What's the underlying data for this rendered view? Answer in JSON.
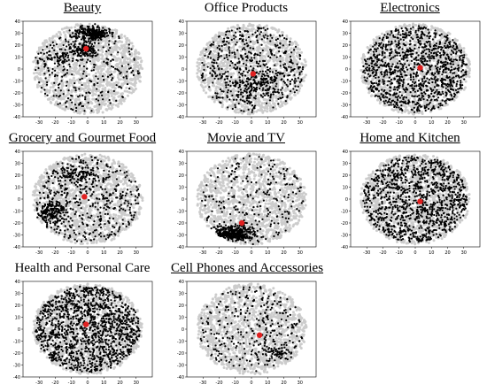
{
  "colors": {
    "background_points": "#cccccc",
    "category_points": "#000000",
    "centroid": "#e02020"
  },
  "chart_data": [
    {
      "type": "scatter",
      "title": "Beauty",
      "title_underlined": true,
      "xlim": [
        -40,
        40
      ],
      "ylim": [
        -40,
        40
      ],
      "xticks": [
        "-30",
        "-20",
        "-10",
        "0",
        "10",
        "20",
        "30"
      ],
      "yticks": [
        "40",
        "30",
        "20",
        "10",
        "0",
        "-10",
        "-20",
        "-30",
        "-40"
      ],
      "series": [
        {
          "role": "all_products",
          "color": "#cccccc",
          "shape": "ellipse",
          "center": [
            0,
            0
          ],
          "radius": [
            34,
            38
          ],
          "points": 1400
        },
        {
          "role": "category",
          "color": "#000000",
          "density": "cluster",
          "clusters": [
            {
              "center": [
                3,
                30
              ],
              "radius": [
                10,
                5
              ],
              "points": 260
            },
            {
              "center": [
                -2,
                16
              ],
              "radius": [
                8,
                6
              ],
              "points": 120
            },
            {
              "center": [
                -18,
                10
              ],
              "radius": [
                9,
                8
              ],
              "points": 70
            }
          ],
          "scattered": 260
        },
        {
          "role": "centroid",
          "color": "#e02020",
          "x": -1,
          "y": 17
        }
      ]
    },
    {
      "type": "scatter",
      "title": "Office Products",
      "title_underlined": false,
      "xlim": [
        -40,
        40
      ],
      "ylim": [
        -40,
        40
      ],
      "xticks": [
        "-30",
        "-20",
        "-10",
        "0",
        "10",
        "20",
        "30"
      ],
      "yticks": [
        "40",
        "30",
        "20",
        "10",
        "0",
        "-10",
        "-20",
        "-30",
        "-40"
      ],
      "series": [
        {
          "role": "all_products",
          "color": "#cccccc",
          "shape": "ellipse",
          "center": [
            0,
            0
          ],
          "radius": [
            34,
            38
          ],
          "points": 1400
        },
        {
          "role": "category",
          "color": "#000000",
          "density": "medium",
          "clusters": [
            {
              "center": [
                5,
                -12
              ],
              "radius": [
                14,
                10
              ],
              "points": 150
            }
          ],
          "scattered": 500
        },
        {
          "role": "centroid",
          "color": "#e02020",
          "x": 1,
          "y": -4
        }
      ]
    },
    {
      "type": "scatter",
      "title": "Electronics",
      "title_underlined": true,
      "xlim": [
        -40,
        40
      ],
      "ylim": [
        -40,
        40
      ],
      "xticks": [
        "-30",
        "-20",
        "-10",
        "0",
        "10",
        "20",
        "30"
      ],
      "yticks": [
        "40",
        "30",
        "20",
        "10",
        "0",
        "-10",
        "-20",
        "-30",
        "-40"
      ],
      "series": [
        {
          "role": "all_products",
          "color": "#cccccc",
          "shape": "ellipse",
          "center": [
            0,
            0
          ],
          "radius": [
            34,
            38
          ],
          "points": 1400
        },
        {
          "role": "category",
          "color": "#000000",
          "density": "high",
          "clusters": [],
          "scattered": 1100
        },
        {
          "role": "centroid",
          "color": "#e02020",
          "x": 3,
          "y": 1
        }
      ]
    },
    {
      "type": "scatter",
      "title": "Grocery and Gourmet Food",
      "title_underlined": true,
      "xlim": [
        -40,
        40
      ],
      "ylim": [
        -40,
        40
      ],
      "xticks": [
        "-30",
        "-20",
        "-10",
        "0",
        "10",
        "20",
        "30"
      ],
      "yticks": [
        "40",
        "30",
        "20",
        "10",
        "0",
        "-10",
        "-20",
        "-30",
        "-40"
      ],
      "series": [
        {
          "role": "all_products",
          "color": "#cccccc",
          "shape": "ellipse",
          "center": [
            0,
            0
          ],
          "radius": [
            34,
            38
          ],
          "points": 1400
        },
        {
          "role": "category",
          "color": "#000000",
          "density": "medium",
          "clusters": [
            {
              "center": [
                -22,
                -10
              ],
              "radius": [
                9,
                9
              ],
              "points": 180
            },
            {
              "center": [
                -5,
                20
              ],
              "radius": [
                10,
                7
              ],
              "points": 90
            }
          ],
          "scattered": 450
        },
        {
          "role": "centroid",
          "color": "#e02020",
          "x": -2,
          "y": 2
        }
      ]
    },
    {
      "type": "scatter",
      "title": "Movie and TV",
      "title_underlined": true,
      "xlim": [
        -40,
        40
      ],
      "ylim": [
        -40,
        40
      ],
      "xticks": [
        "-30",
        "-20",
        "-10",
        "0",
        "10",
        "20",
        "30"
      ],
      "yticks": [
        "40",
        "30",
        "20",
        "10",
        "0",
        "-10",
        "-20",
        "-30",
        "-40"
      ],
      "series": [
        {
          "role": "all_products",
          "color": "#cccccc",
          "shape": "ellipse",
          "center": [
            0,
            0
          ],
          "radius": [
            34,
            38
          ],
          "points": 1400
        },
        {
          "role": "category",
          "color": "#000000",
          "density": "cluster",
          "clusters": [
            {
              "center": [
                -11,
                -29
              ],
              "radius": [
                12,
                6
              ],
              "points": 380
            }
          ],
          "scattered": 220
        },
        {
          "role": "centroid",
          "color": "#e02020",
          "x": -6,
          "y": -20
        }
      ]
    },
    {
      "type": "scatter",
      "title": "Home and Kitchen",
      "title_underlined": true,
      "xlim": [
        -40,
        40
      ],
      "ylim": [
        -40,
        40
      ],
      "xticks": [
        "-30",
        "-20",
        "-10",
        "0",
        "10",
        "20",
        "30"
      ],
      "yticks": [
        "40",
        "30",
        "20",
        "10",
        "0",
        "-10",
        "-20",
        "-30",
        "-40"
      ],
      "series": [
        {
          "role": "all_products",
          "color": "#cccccc",
          "shape": "ellipse",
          "center": [
            0,
            0
          ],
          "radius": [
            34,
            38
          ],
          "points": 1400
        },
        {
          "role": "category",
          "color": "#000000",
          "density": "high",
          "clusters": [],
          "scattered": 1100
        },
        {
          "role": "centroid",
          "color": "#e02020",
          "x": 3,
          "y": -2
        }
      ]
    },
    {
      "type": "scatter",
      "title": "Health and Personal Care",
      "title_underlined": false,
      "xlim": [
        -40,
        40
      ],
      "ylim": [
        -40,
        40
      ],
      "xticks": [
        "-30",
        "-20",
        "-10",
        "0",
        "10",
        "20",
        "30"
      ],
      "yticks": [
        "40",
        "30",
        "20",
        "10",
        "0",
        "-10",
        "-20",
        "-30",
        "-40"
      ],
      "series": [
        {
          "role": "all_products",
          "color": "#cccccc",
          "shape": "ellipse",
          "center": [
            0,
            0
          ],
          "radius": [
            34,
            38
          ],
          "points": 1400
        },
        {
          "role": "category",
          "color": "#000000",
          "density": "high",
          "clusters": [],
          "scattered": 1300
        },
        {
          "role": "centroid",
          "color": "#e02020",
          "x": -1,
          "y": 4
        }
      ]
    },
    {
      "type": "scatter",
      "title": "Cell Phones and Accessories",
      "title_underlined": true,
      "xlim": [
        -40,
        40
      ],
      "ylim": [
        -40,
        40
      ],
      "xticks": [
        "-30",
        "-20",
        "-10",
        "0",
        "10",
        "20",
        "30"
      ],
      "yticks": [
        "40",
        "30",
        "20",
        "10",
        "0",
        "-10",
        "-20",
        "-30",
        "-40"
      ],
      "series": [
        {
          "role": "all_products",
          "color": "#cccccc",
          "shape": "ellipse",
          "center": [
            0,
            0
          ],
          "radius": [
            34,
            38
          ],
          "points": 1400
        },
        {
          "role": "category",
          "color": "#000000",
          "density": "low",
          "clusters": [
            {
              "center": [
                15,
                -20
              ],
              "radius": [
                8,
                6
              ],
              "points": 60
            }
          ],
          "scattered": 300
        },
        {
          "role": "centroid",
          "color": "#e02020",
          "x": 5,
          "y": -5
        }
      ]
    }
  ]
}
